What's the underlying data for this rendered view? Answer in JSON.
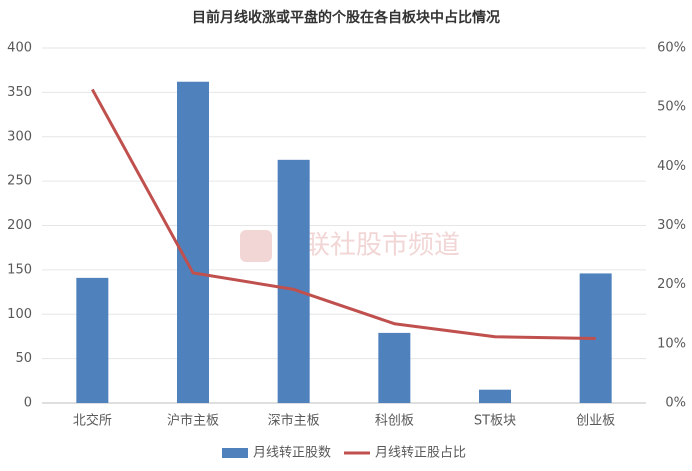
{
  "chart_data": {
    "type": "combo",
    "title": "目前月线收涨或平盘的个股在各自板块中占比情况",
    "watermark": "财联社股市频道",
    "categories": [
      "北交所",
      "沪市主板",
      "深市主板",
      "科创板",
      "ST板块",
      "创业板"
    ],
    "series": [
      {
        "name": "月线转正股数",
        "type": "bar",
        "color": "#4f81bd",
        "values": [
          141,
          362,
          274,
          79,
          15,
          146
        ]
      },
      {
        "name": "月线转正股占比",
        "type": "line",
        "axis": "y2",
        "color": "#c0504d",
        "values": [
          53,
          22,
          19.2,
          13.4,
          11.2,
          10.9
        ]
      }
    ],
    "ylim": [
      0,
      400
    ],
    "yticks": [
      0,
      50,
      100,
      150,
      200,
      250,
      300,
      350,
      400
    ],
    "y2lim": [
      0,
      60
    ],
    "y2ticks": [
      {
        "value": 0,
        "label": "0%"
      },
      {
        "value": 10,
        "label": "10%"
      },
      {
        "value": 20,
        "label": "20%"
      },
      {
        "value": 30,
        "label": "30%"
      },
      {
        "value": 40,
        "label": "40%"
      },
      {
        "value": 50,
        "label": "50%"
      },
      {
        "value": 60,
        "label": "60%"
      }
    ],
    "grid": true,
    "legend": "bottom"
  }
}
